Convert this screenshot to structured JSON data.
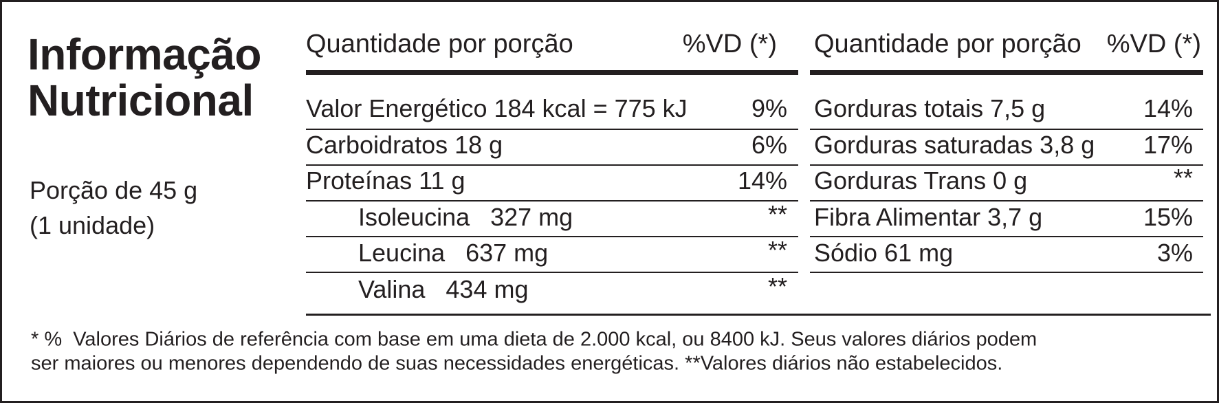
{
  "title": [
    "Informação",
    "Nutricional"
  ],
  "serving": [
    "Porção de 45 g",
    "(1 unidade)"
  ],
  "tables": [
    {
      "header": [
        "Quantidade por porção",
        "%VD (*)"
      ],
      "rows": [
        {
          "label": "Valor Energético 184 kcal = 775 kJ",
          "vd": "9%"
        },
        {
          "label": "Carboidratos 18 g",
          "vd": "6%"
        },
        {
          "label": "Proteínas 11 g",
          "vd": "14%"
        },
        {
          "label": "Isoleucina   327 mg",
          "vd": "**",
          "indent": true
        },
        {
          "label": "Leucina   637 mg",
          "vd": "**",
          "indent": true
        },
        {
          "label": "Valina   434 mg",
          "vd": "**",
          "indent": true
        }
      ]
    },
    {
      "header": [
        "Quantidade por porção",
        "%VD (*)"
      ],
      "rows": [
        {
          "label": "Gorduras totais 7,5 g",
          "vd": "14%"
        },
        {
          "label": "Gorduras saturadas 3,8 g",
          "vd": "17%"
        },
        {
          "label": "Gorduras Trans 0 g",
          "vd": "**"
        },
        {
          "label": "Fibra Alimentar 3,7 g",
          "vd": "15%"
        },
        {
          "label": "Sódio 61 mg",
          "vd": "3%"
        }
      ]
    }
  ],
  "footnote": [
    "* %  Valores Diários de referência com base em uma dieta de 2.000 kcal, ou 8400 kJ. Seus valores diários podem",
    "ser maiores ou menores dependendo de suas necessidades energéticas. **Valores diários não estabelecidos."
  ]
}
